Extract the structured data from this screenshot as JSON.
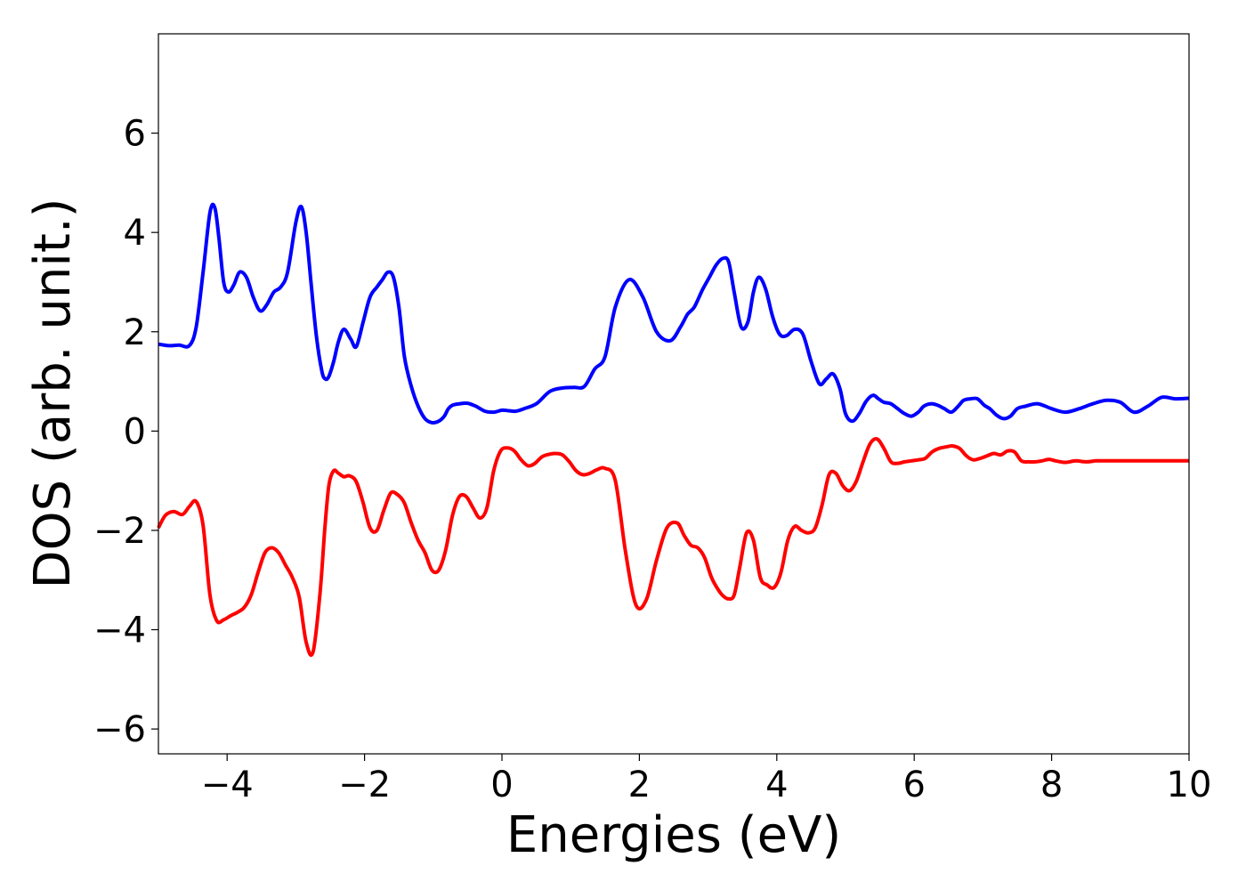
{
  "chart_data": {
    "type": "line",
    "title": "",
    "xlabel": "Energies (eV)",
    "ylabel": "DOS (arb. unit.)",
    "xlim": [
      -5,
      10
    ],
    "ylim": [
      -6.5,
      8.0
    ],
    "xticks": [
      -4,
      -2,
      0,
      2,
      4,
      6,
      8,
      10
    ],
    "xtick_labels": [
      "−4",
      "−2",
      "0",
      "2",
      "4",
      "6",
      "8",
      "10"
    ],
    "yticks": [
      -6,
      -4,
      -2,
      0,
      2,
      4,
      6
    ],
    "ytick_labels": [
      "−6",
      "−4",
      "−2",
      "0",
      "2",
      "4",
      "6"
    ],
    "grid": false,
    "legend": "none",
    "series": [
      {
        "color": "#0000ff",
        "x": [
          -5.0,
          -4.85,
          -4.7,
          -4.55,
          -4.45,
          -4.35,
          -4.25,
          -4.18,
          -4.12,
          -4.05,
          -3.98,
          -3.9,
          -3.82,
          -3.72,
          -3.62,
          -3.52,
          -3.42,
          -3.32,
          -3.22,
          -3.12,
          -3.0,
          -2.92,
          -2.85,
          -2.78,
          -2.7,
          -2.62,
          -2.57,
          -2.52,
          -2.45,
          -2.38,
          -2.3,
          -2.2,
          -2.12,
          -2.02,
          -1.92,
          -1.82,
          -1.74,
          -1.66,
          -1.58,
          -1.5,
          -1.42,
          -1.32,
          -1.22,
          -1.12,
          -1.02,
          -0.92,
          -0.84,
          -0.78,
          -0.72,
          -0.62,
          -0.5,
          -0.38,
          -0.25,
          -0.12,
          0.0,
          0.1,
          0.2,
          0.32,
          0.5,
          0.7,
          0.9,
          1.05,
          1.2,
          1.35,
          1.5,
          1.65,
          1.85,
          2.05,
          2.25,
          2.45,
          2.6,
          2.7,
          2.8,
          2.92,
          3.02,
          3.12,
          3.22,
          3.3,
          3.38,
          3.48,
          3.58,
          3.66,
          3.74,
          3.84,
          3.94,
          4.04,
          4.14,
          4.26,
          4.38,
          4.5,
          4.62,
          4.72,
          4.82,
          4.92,
          5.0,
          5.1,
          5.2,
          5.3,
          5.4,
          5.48,
          5.56,
          5.66,
          5.76,
          5.86,
          5.96,
          6.06,
          6.14,
          6.24,
          6.34,
          6.44,
          6.54,
          6.64,
          6.72,
          6.82,
          6.92,
          7.02,
          7.1,
          7.2,
          7.3,
          7.4,
          7.5,
          7.62,
          7.8,
          8.0,
          8.2,
          8.4,
          8.6,
          8.8,
          9.0,
          9.2,
          9.4,
          9.6,
          9.8,
          10.0
        ],
        "y": [
          1.75,
          1.72,
          1.73,
          1.72,
          2.1,
          3.2,
          4.4,
          4.5,
          3.9,
          3.0,
          2.8,
          2.95,
          3.2,
          3.1,
          2.7,
          2.42,
          2.55,
          2.8,
          2.9,
          3.2,
          4.2,
          4.52,
          4.0,
          3.0,
          1.9,
          1.2,
          1.05,
          1.1,
          1.4,
          1.8,
          2.05,
          1.85,
          1.7,
          2.2,
          2.7,
          2.9,
          3.05,
          3.2,
          3.1,
          2.5,
          1.5,
          0.9,
          0.5,
          0.25,
          0.17,
          0.2,
          0.3,
          0.45,
          0.52,
          0.55,
          0.56,
          0.5,
          0.4,
          0.38,
          0.42,
          0.41,
          0.4,
          0.45,
          0.55,
          0.8,
          0.87,
          0.88,
          0.9,
          1.25,
          1.5,
          2.5,
          3.05,
          2.7,
          2.0,
          1.82,
          2.1,
          2.35,
          2.5,
          2.85,
          3.1,
          3.35,
          3.48,
          3.4,
          2.8,
          2.1,
          2.2,
          2.8,
          3.1,
          2.85,
          2.3,
          1.95,
          1.92,
          2.05,
          1.95,
          1.4,
          0.95,
          1.05,
          1.15,
          0.85,
          0.35,
          0.2,
          0.35,
          0.6,
          0.72,
          0.65,
          0.58,
          0.55,
          0.45,
          0.35,
          0.3,
          0.38,
          0.5,
          0.55,
          0.52,
          0.45,
          0.38,
          0.5,
          0.62,
          0.65,
          0.65,
          0.52,
          0.45,
          0.32,
          0.25,
          0.3,
          0.45,
          0.5,
          0.55,
          0.45,
          0.38,
          0.45,
          0.55,
          0.62,
          0.58,
          0.38,
          0.5,
          0.68,
          0.65,
          0.66
        ]
      },
      {
        "color": "#ff0000",
        "x": [
          -5.0,
          -4.9,
          -4.78,
          -4.65,
          -4.55,
          -4.45,
          -4.35,
          -4.25,
          -4.15,
          -4.05,
          -3.95,
          -3.85,
          -3.75,
          -3.65,
          -3.55,
          -3.45,
          -3.35,
          -3.25,
          -3.15,
          -3.05,
          -2.95,
          -2.85,
          -2.75,
          -2.65,
          -2.58,
          -2.52,
          -2.45,
          -2.38,
          -2.3,
          -2.22,
          -2.12,
          -2.02,
          -1.92,
          -1.82,
          -1.72,
          -1.62,
          -1.52,
          -1.42,
          -1.32,
          -1.22,
          -1.12,
          -1.02,
          -0.92,
          -0.82,
          -0.72,
          -0.62,
          -0.52,
          -0.42,
          -0.32,
          -0.22,
          -0.12,
          -0.02,
          0.08,
          0.18,
          0.28,
          0.38,
          0.48,
          0.58,
          0.68,
          0.78,
          0.88,
          0.98,
          1.08,
          1.18,
          1.28,
          1.38,
          1.5,
          1.65,
          1.8,
          1.95,
          2.1,
          2.25,
          2.4,
          2.55,
          2.65,
          2.75,
          2.85,
          2.95,
          3.05,
          3.15,
          3.22,
          3.3,
          3.38,
          3.46,
          3.56,
          3.66,
          3.76,
          3.86,
          3.96,
          4.06,
          4.16,
          4.26,
          4.36,
          4.46,
          4.56,
          4.66,
          4.76,
          4.86,
          4.96,
          5.06,
          5.16,
          5.26,
          5.36,
          5.46,
          5.56,
          5.66,
          5.76,
          5.86,
          5.96,
          6.06,
          6.16,
          6.26,
          6.36,
          6.46,
          6.56,
          6.66,
          6.76,
          6.86,
          6.96,
          7.06,
          7.16,
          7.26,
          7.36,
          7.46,
          7.56,
          7.66,
          7.76,
          7.86,
          7.96,
          8.06,
          8.2,
          8.35,
          8.5,
          8.65,
          8.8,
          9.0,
          9.2,
          9.4,
          9.6,
          9.8,
          10.0
        ],
        "y": [
          -1.95,
          -1.7,
          -1.62,
          -1.68,
          -1.52,
          -1.42,
          -1.9,
          -3.3,
          -3.82,
          -3.8,
          -3.72,
          -3.65,
          -3.55,
          -3.3,
          -2.85,
          -2.45,
          -2.35,
          -2.45,
          -2.7,
          -2.95,
          -3.35,
          -4.25,
          -4.45,
          -3.3,
          -2.0,
          -1.1,
          -0.8,
          -0.85,
          -0.92,
          -0.9,
          -1.02,
          -1.45,
          -1.95,
          -2.0,
          -1.6,
          -1.25,
          -1.28,
          -1.45,
          -1.85,
          -2.2,
          -2.45,
          -2.8,
          -2.8,
          -2.4,
          -1.7,
          -1.32,
          -1.32,
          -1.55,
          -1.75,
          -1.55,
          -0.8,
          -0.4,
          -0.34,
          -0.4,
          -0.58,
          -0.7,
          -0.65,
          -0.52,
          -0.47,
          -0.45,
          -0.48,
          -0.62,
          -0.8,
          -0.88,
          -0.85,
          -0.78,
          -0.75,
          -1.0,
          -2.45,
          -3.5,
          -3.4,
          -2.6,
          -1.95,
          -1.85,
          -2.1,
          -2.3,
          -2.35,
          -2.55,
          -2.95,
          -3.2,
          -3.32,
          -3.38,
          -3.3,
          -2.75,
          -2.05,
          -2.2,
          -2.95,
          -3.1,
          -3.15,
          -2.85,
          -2.2,
          -1.92,
          -2.0,
          -2.05,
          -1.95,
          -1.48,
          -0.88,
          -0.85,
          -1.1,
          -1.2,
          -1.0,
          -0.6,
          -0.25,
          -0.16,
          -0.35,
          -0.62,
          -0.65,
          -0.62,
          -0.6,
          -0.58,
          -0.55,
          -0.42,
          -0.35,
          -0.32,
          -0.3,
          -0.35,
          -0.5,
          -0.58,
          -0.55,
          -0.5,
          -0.45,
          -0.48,
          -0.4,
          -0.42,
          -0.6,
          -0.62,
          -0.62,
          -0.6,
          -0.57,
          -0.6,
          -0.63,
          -0.6,
          -0.62,
          -0.6,
          -0.6,
          -0.6,
          -0.6,
          -0.6,
          -0.6,
          -0.6,
          -0.6
        ]
      }
    ]
  }
}
